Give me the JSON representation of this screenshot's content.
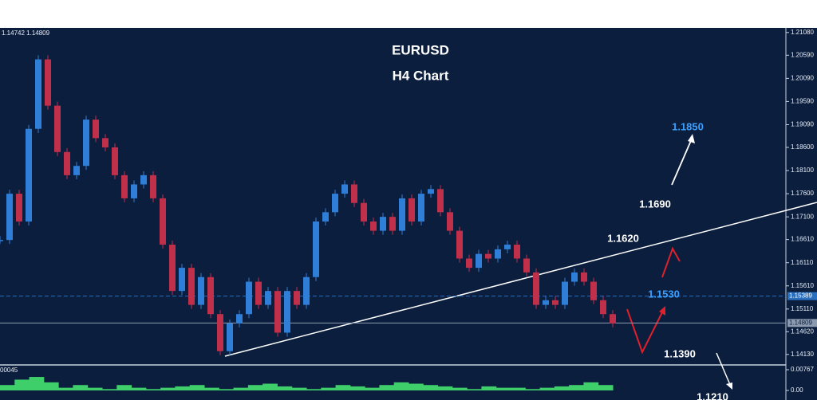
{
  "chart_data": [
    {
      "type": "candlestick",
      "title": "EURUSD",
      "subtitle": "H4 Chart",
      "info": "1.14742 1.14809",
      "values": [
        1.166,
        1.176,
        1.17,
        1.19,
        1.205,
        1.195,
        1.185,
        1.18,
        1.182,
        1.192,
        1.188,
        1.186,
        1.18,
        1.175,
        1.178,
        1.18,
        1.175,
        1.165,
        1.155,
        1.16,
        1.152,
        1.158,
        1.15,
        1.142,
        1.148,
        1.15,
        1.157,
        1.152,
        1.155,
        1.146,
        1.155,
        1.152,
        1.158,
        1.17,
        1.172,
        1.176,
        1.178,
        1.174,
        1.17,
        1.168,
        1.171,
        1.168,
        1.175,
        1.17,
        1.176,
        1.177,
        1.172,
        1.168,
        1.162,
        1.16,
        1.163,
        1.162,
        1.164,
        1.165,
        1.162,
        1.159,
        1.152,
        1.153,
        1.152,
        1.157,
        1.159,
        1.157,
        1.153,
        1.15,
        1.148
      ],
      "up_color": "#2f7fd8",
      "down_color": "#c0304a",
      "ylim": [
        1.1392,
        1.2118
      ],
      "yticks": [
        {
          "value": 1.2108,
          "label": "1.21080"
        },
        {
          "value": 1.2059,
          "label": "1.20590"
        },
        {
          "value": 1.2009,
          "label": "1.20090"
        },
        {
          "value": 1.1959,
          "label": "1.19590"
        },
        {
          "value": 1.1909,
          "label": "1.19090"
        },
        {
          "value": 1.186,
          "label": "1.18600"
        },
        {
          "value": 1.181,
          "label": "1.18100"
        },
        {
          "value": 1.176,
          "label": "1.17600"
        },
        {
          "value": 1.171,
          "label": "1.17100"
        },
        {
          "value": 1.1661,
          "label": "1.16610"
        },
        {
          "value": 1.1611,
          "label": "1.16110"
        },
        {
          "value": 1.1561,
          "label": "1.15610"
        },
        {
          "value": 1.1511,
          "label": "1.15110"
        },
        {
          "value": 1.1462,
          "label": "1.14620"
        },
        {
          "value": 1.1413,
          "label": "1.14130"
        }
      ],
      "price_lines": [
        {
          "value": 1.15389,
          "label": "1.15389",
          "color": "#2a6fc0"
        },
        {
          "value": 1.14809,
          "label": "1.14809",
          "color": "#8c9bb0"
        }
      ],
      "annotations": [
        {
          "text": "1.1850",
          "color": "#3aa0ff"
        },
        {
          "text": "1.1690",
          "color": "#ffffff"
        },
        {
          "text": "1.1620",
          "color": "#ffffff"
        },
        {
          "text": "1.1530",
          "color": "#3aa0ff"
        },
        {
          "text": "1.1390",
          "color": "#ffffff"
        },
        {
          "text": "1.1210",
          "color": "#ffffff"
        }
      ]
    },
    {
      "type": "histogram-oscillator",
      "title": "00045",
      "color": "#3ecf6a",
      "values": [
        0.002,
        0.004,
        0.005,
        0.003,
        0.001,
        0.002,
        0.001,
        0.0005,
        0.002,
        0.001,
        0.0005,
        0.001,
        0.0015,
        0.002,
        0.001,
        0.0005,
        0.001,
        0.002,
        0.0025,
        0.0015,
        0.001,
        0.0005,
        0.001,
        0.002,
        0.0015,
        0.001,
        0.002,
        0.003,
        0.0025,
        0.002,
        0.0015,
        0.001,
        0.0005,
        0.0015,
        0.001,
        0.001,
        0.0005,
        0.001,
        0.0015,
        0.002,
        0.003,
        0.002
      ],
      "ylim": [
        -0.00354,
        0.00885
      ],
      "yticks": [
        {
          "value": 0.00767,
          "label": "0.00767"
        },
        {
          "value": 0,
          "label": "0.00"
        }
      ]
    }
  ]
}
